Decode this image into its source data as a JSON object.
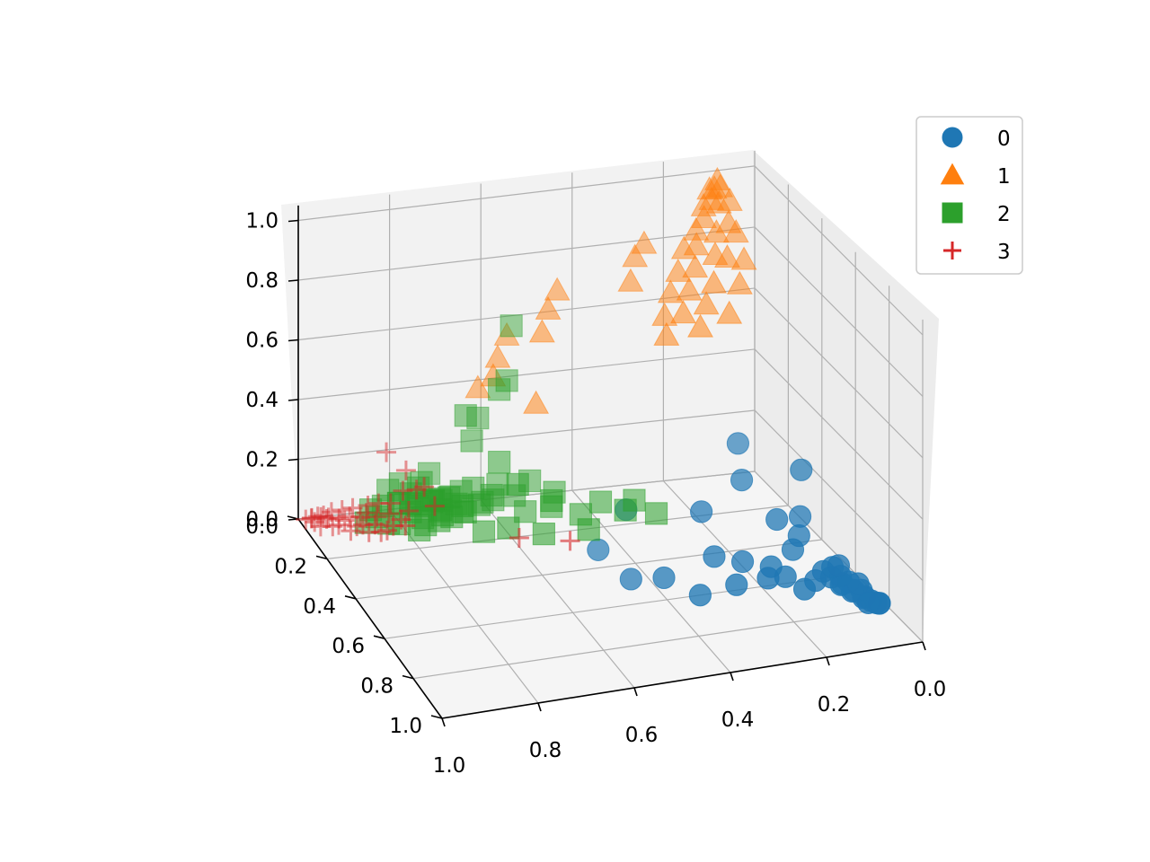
{
  "chart_data": {
    "type": "scatter",
    "projection": "3d",
    "title": "",
    "xlabel": "",
    "ylabel": "",
    "zlabel": "",
    "xlim": [
      0.0,
      1.0
    ],
    "ylim": [
      0.0,
      1.0
    ],
    "zlim": [
      0.0,
      1.0
    ],
    "x_ticks": [
      "0.0",
      "0.2",
      "0.4",
      "0.6",
      "0.8",
      "1.0"
    ],
    "y_ticks": [
      "0.0",
      "0.2",
      "0.4",
      "0.6",
      "0.8",
      "1.0"
    ],
    "z_ticks": [
      "0.0",
      "0.2",
      "0.4",
      "0.6",
      "0.8",
      "1.0"
    ],
    "grid": true,
    "legend_position": "top-right",
    "series": [
      {
        "name": "0",
        "marker": "circle",
        "color": "#1f77b4",
        "points": [
          [
            0.02,
            0.75,
            0.0
          ],
          [
            0.03,
            0.74,
            0.01
          ],
          [
            0.04,
            0.76,
            0.02
          ],
          [
            0.02,
            0.78,
            0.01
          ],
          [
            0.05,
            0.73,
            0.03
          ],
          [
            0.03,
            0.72,
            0.02
          ],
          [
            0.06,
            0.75,
            0.04
          ],
          [
            0.01,
            0.77,
            0.0
          ],
          [
            0.04,
            0.79,
            0.02
          ],
          [
            0.07,
            0.72,
            0.05
          ],
          [
            0.05,
            0.7,
            0.04
          ],
          [
            0.08,
            0.74,
            0.06
          ],
          [
            0.03,
            0.7,
            0.03
          ],
          [
            0.06,
            0.68,
            0.05
          ],
          [
            0.09,
            0.71,
            0.07
          ],
          [
            0.02,
            0.8,
            0.02
          ],
          [
            0.1,
            0.69,
            0.08
          ],
          [
            0.07,
            0.66,
            0.07
          ],
          [
            0.12,
            0.7,
            0.06
          ],
          [
            0.05,
            0.64,
            0.06
          ],
          [
            0.15,
            0.72,
            0.05
          ],
          [
            0.18,
            0.69,
            0.08
          ],
          [
            0.2,
            0.66,
            0.1
          ],
          [
            0.14,
            0.62,
            0.12
          ],
          [
            0.22,
            0.7,
            0.09
          ],
          [
            0.25,
            0.63,
            0.11
          ],
          [
            0.28,
            0.68,
            0.07
          ],
          [
            0.12,
            0.6,
            0.15
          ],
          [
            0.16,
            0.58,
            0.2
          ],
          [
            0.1,
            0.55,
            0.18
          ],
          [
            0.3,
            0.6,
            0.12
          ],
          [
            0.35,
            0.66,
            0.04
          ],
          [
            0.4,
            0.58,
            0.06
          ],
          [
            0.45,
            0.52,
            0.03
          ],
          [
            0.2,
            0.48,
            0.28
          ],
          [
            0.08,
            0.5,
            0.3
          ],
          [
            0.18,
            0.4,
            0.35
          ],
          [
            0.5,
            0.46,
            0.1
          ],
          [
            0.42,
            0.4,
            0.18
          ],
          [
            0.3,
            0.52,
            0.22
          ]
        ]
      },
      {
        "name": "1",
        "marker": "triangle",
        "color": "#ff7f0e",
        "points": [
          [
            0.1,
            0.05,
            1.0
          ],
          [
            0.11,
            0.06,
            0.98
          ],
          [
            0.09,
            0.04,
            0.97
          ],
          [
            0.12,
            0.07,
            0.95
          ],
          [
            0.1,
            0.06,
            0.93
          ],
          [
            0.13,
            0.05,
            0.92
          ],
          [
            0.08,
            0.07,
            0.94
          ],
          [
            0.11,
            0.03,
            0.96
          ],
          [
            0.14,
            0.08,
            0.9
          ],
          [
            0.09,
            0.09,
            0.88
          ],
          [
            0.12,
            0.1,
            0.86
          ],
          [
            0.15,
            0.06,
            0.85
          ],
          [
            0.07,
            0.08,
            0.84
          ],
          [
            0.16,
            0.09,
            0.82
          ],
          [
            0.13,
            0.12,
            0.8
          ],
          [
            0.1,
            0.11,
            0.78
          ],
          [
            0.18,
            0.07,
            0.8
          ],
          [
            0.17,
            0.11,
            0.76
          ],
          [
            0.2,
            0.09,
            0.74
          ],
          [
            0.14,
            0.14,
            0.72
          ],
          [
            0.19,
            0.13,
            0.7
          ],
          [
            0.22,
            0.1,
            0.68
          ],
          [
            0.16,
            0.15,
            0.66
          ],
          [
            0.21,
            0.15,
            0.64
          ],
          [
            0.11,
            0.15,
            0.62
          ],
          [
            0.24,
            0.12,
            0.62
          ],
          [
            0.18,
            0.17,
            0.6
          ],
          [
            0.25,
            0.16,
            0.58
          ],
          [
            0.08,
            0.13,
            0.7
          ],
          [
            0.06,
            0.1,
            0.76
          ],
          [
            0.28,
            0.05,
            0.78
          ],
          [
            0.3,
            0.08,
            0.72
          ],
          [
            0.26,
            0.05,
            0.82
          ],
          [
            0.45,
            0.05,
            0.7
          ],
          [
            0.48,
            0.08,
            0.66
          ],
          [
            0.5,
            0.1,
            0.6
          ],
          [
            0.55,
            0.02,
            0.55
          ],
          [
            0.58,
            0.05,
            0.5
          ],
          [
            0.6,
            0.08,
            0.46
          ],
          [
            0.62,
            0.04,
            0.4
          ],
          [
            0.52,
            0.12,
            0.38
          ]
        ]
      },
      {
        "name": "2",
        "marker": "square",
        "color": "#2ca02c",
        "points": [
          [
            0.72,
            0.05,
            0.05
          ],
          [
            0.74,
            0.06,
            0.06
          ],
          [
            0.7,
            0.04,
            0.04
          ],
          [
            0.76,
            0.07,
            0.05
          ],
          [
            0.73,
            0.08,
            0.07
          ],
          [
            0.71,
            0.07,
            0.03
          ],
          [
            0.77,
            0.05,
            0.08
          ],
          [
            0.75,
            0.04,
            0.09
          ],
          [
            0.69,
            0.06,
            0.06
          ],
          [
            0.78,
            0.08,
            0.04
          ],
          [
            0.72,
            0.09,
            0.08
          ],
          [
            0.8,
            0.06,
            0.06
          ],
          [
            0.68,
            0.08,
            0.05
          ],
          [
            0.74,
            0.03,
            0.1
          ],
          [
            0.76,
            0.1,
            0.03
          ],
          [
            0.7,
            0.1,
            0.09
          ],
          [
            0.79,
            0.04,
            0.11
          ],
          [
            0.66,
            0.05,
            0.07
          ],
          [
            0.73,
            0.12,
            0.06
          ],
          [
            0.81,
            0.09,
            0.08
          ],
          [
            0.67,
            0.11,
            0.04
          ],
          [
            0.75,
            0.13,
            0.1
          ],
          [
            0.71,
            0.14,
            0.05
          ],
          [
            0.78,
            0.12,
            0.09
          ],
          [
            0.64,
            0.07,
            0.09
          ],
          [
            0.82,
            0.05,
            0.1
          ],
          [
            0.69,
            0.15,
            0.07
          ],
          [
            0.77,
            0.15,
            0.04
          ],
          [
            0.63,
            0.1,
            0.06
          ],
          [
            0.84,
            0.08,
            0.07
          ],
          [
            0.72,
            0.02,
            0.12
          ],
          [
            0.8,
            0.14,
            0.11
          ],
          [
            0.65,
            0.14,
            0.08
          ],
          [
            0.86,
            0.1,
            0.05
          ],
          [
            0.6,
            0.08,
            0.05
          ],
          [
            0.74,
            0.17,
            0.08
          ],
          [
            0.83,
            0.16,
            0.06
          ],
          [
            0.62,
            0.13,
            0.1
          ],
          [
            0.7,
            0.18,
            0.11
          ],
          [
            0.88,
            0.12,
            0.09
          ],
          [
            0.58,
            0.05,
            0.08
          ],
          [
            0.56,
            0.1,
            0.07
          ],
          [
            0.55,
            0.14,
            0.04
          ],
          [
            0.52,
            0.08,
            0.1
          ],
          [
            0.5,
            0.16,
            0.06
          ],
          [
            0.48,
            0.12,
            0.08
          ],
          [
            0.45,
            0.2,
            0.05
          ],
          [
            0.4,
            0.18,
            0.07
          ],
          [
            0.36,
            0.22,
            0.06
          ],
          [
            0.32,
            0.16,
            0.05
          ],
          [
            0.3,
            0.24,
            0.05
          ],
          [
            0.46,
            0.28,
            0.05
          ],
          [
            0.55,
            0.26,
            0.04
          ],
          [
            0.62,
            0.24,
            0.06
          ],
          [
            0.66,
            0.2,
            0.03
          ],
          [
            0.52,
            0.22,
            0.12
          ],
          [
            0.58,
            0.18,
            0.16
          ],
          [
            0.6,
            0.12,
            0.2
          ],
          [
            0.64,
            0.06,
            0.24
          ],
          [
            0.62,
            0.04,
            0.3
          ],
          [
            0.66,
            0.08,
            0.34
          ],
          [
            0.58,
            0.06,
            0.4
          ],
          [
            0.56,
            0.05,
            0.42
          ],
          [
            0.54,
            0.02,
            0.58
          ],
          [
            0.86,
            0.18,
            0.08
          ],
          [
            0.9,
            0.15,
            0.07
          ],
          [
            0.8,
            0.2,
            0.06
          ],
          [
            0.76,
            0.21,
            0.09
          ]
        ]
      },
      {
        "name": "3",
        "marker": "plus",
        "color": "#d62728",
        "points": [
          [
            0.98,
            0.03,
            0.02
          ],
          [
            0.99,
            0.02,
            0.01
          ],
          [
            0.97,
            0.04,
            0.03
          ],
          [
            0.96,
            0.03,
            0.02
          ],
          [
            0.95,
            0.05,
            0.03
          ],
          [
            0.98,
            0.05,
            0.02
          ],
          [
            0.94,
            0.04,
            0.04
          ],
          [
            0.97,
            0.06,
            0.01
          ],
          [
            0.93,
            0.06,
            0.03
          ],
          [
            0.96,
            0.07,
            0.04
          ],
          [
            0.92,
            0.05,
            0.05
          ],
          [
            0.95,
            0.08,
            0.02
          ],
          [
            0.91,
            0.07,
            0.04
          ],
          [
            0.94,
            0.09,
            0.03
          ],
          [
            0.9,
            0.06,
            0.06
          ],
          [
            0.93,
            0.1,
            0.05
          ],
          [
            0.89,
            0.08,
            0.04
          ],
          [
            0.92,
            0.11,
            0.02
          ],
          [
            0.88,
            0.09,
            0.06
          ],
          [
            0.91,
            0.12,
            0.04
          ],
          [
            0.87,
            0.07,
            0.07
          ],
          [
            0.9,
            0.13,
            0.05
          ],
          [
            0.86,
            0.1,
            0.05
          ],
          [
            0.89,
            0.14,
            0.03
          ],
          [
            0.85,
            0.08,
            0.08
          ],
          [
            0.88,
            0.15,
            0.06
          ],
          [
            0.84,
            0.12,
            0.07
          ],
          [
            0.87,
            0.16,
            0.04
          ],
          [
            0.83,
            0.1,
            0.09
          ],
          [
            0.86,
            0.17,
            0.05
          ],
          [
            0.82,
            0.14,
            0.06
          ],
          [
            0.85,
            0.18,
            0.07
          ],
          [
            0.8,
            0.09,
            0.12
          ],
          [
            0.78,
            0.12,
            0.14
          ],
          [
            0.81,
            0.16,
            0.1
          ],
          [
            0.79,
            0.08,
            0.18
          ],
          [
            0.83,
            0.2,
            0.08
          ],
          [
            0.77,
            0.14,
            0.16
          ],
          [
            0.99,
            0.06,
            0.04
          ],
          [
            0.97,
            0.08,
            0.06
          ],
          [
            0.6,
            0.25,
            0.03
          ],
          [
            0.5,
            0.28,
            0.02
          ],
          [
            0.82,
            0.04,
            0.22
          ],
          [
            0.76,
            0.18,
            0.12
          ]
        ]
      }
    ]
  }
}
